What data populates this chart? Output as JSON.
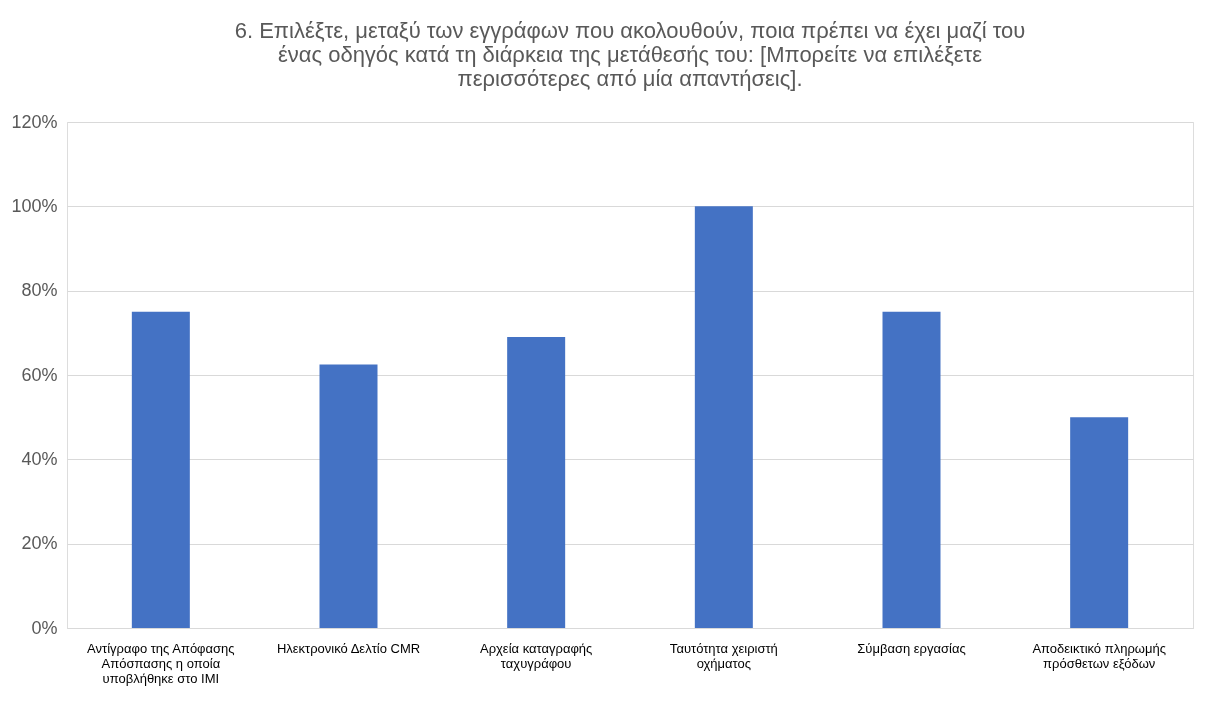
{
  "chart_data": {
    "type": "bar",
    "title": "6. Επιλέξτε, μεταξύ των εγγράφων που ακολουθούν, ποια πρέπει να έχει μαζί του ένας οδηγός κατά τη διάρκεια της μετάθεσής του: [Μπορείτε να επιλέξετε περισσότερες από μία απαντήσεις].",
    "categories": [
      "Αντίγραφο της Απόφασης Απόσπασης η οποία υποβλήθηκε στο ΙΜΙ",
      "Ηλεκτρονικό Δελτίο CMR",
      "Αρχεία καταγραφής ταχυγράφου",
      "Ταυτότητα χειριστή οχήματος",
      "Σύμβαση εργασίας",
      "Αποδεικτικό πληρωμής πρόσθετων εξόδων"
    ],
    "values": [
      75,
      62.5,
      69,
      100,
      75,
      50
    ],
    "color": "#4472c4",
    "ylim": [
      0,
      120
    ],
    "yticks": [
      {
        "value": 0,
        "label": "0%"
      },
      {
        "value": 20,
        "label": "20%"
      },
      {
        "value": 40,
        "label": "40%"
      },
      {
        "value": 60,
        "label": "60%"
      },
      {
        "value": 80,
        "label": "80%"
      },
      {
        "value": 100,
        "label": "100%"
      },
      {
        "value": 120,
        "label": "120%"
      }
    ],
    "grid": "y"
  }
}
